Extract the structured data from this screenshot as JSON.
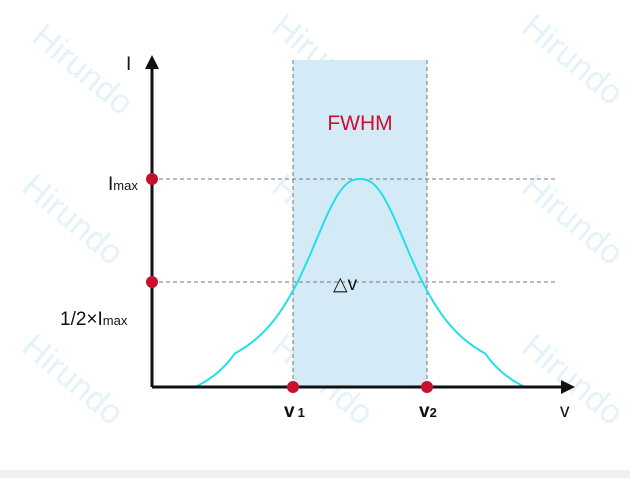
{
  "watermark": "Hirundo",
  "title_label": "FWHM",
  "y_axis_label": "I",
  "x_axis_label": "v",
  "imax_label": {
    "main": "I",
    "sub": "max"
  },
  "half_label": {
    "main": "1/2×I",
    "sub": "max"
  },
  "delta_label": {
    "symbol": "△",
    "var": "v"
  },
  "v1_label": {
    "main": "v",
    "sub": "1"
  },
  "v2_label": {
    "main": "v",
    "sub": "2"
  },
  "colors": {
    "curve": "#22e0e8",
    "band": "#d5eaf7",
    "marker": "#c8102e",
    "fwhm_text": "#c8102e",
    "axis": "#111111"
  }
}
